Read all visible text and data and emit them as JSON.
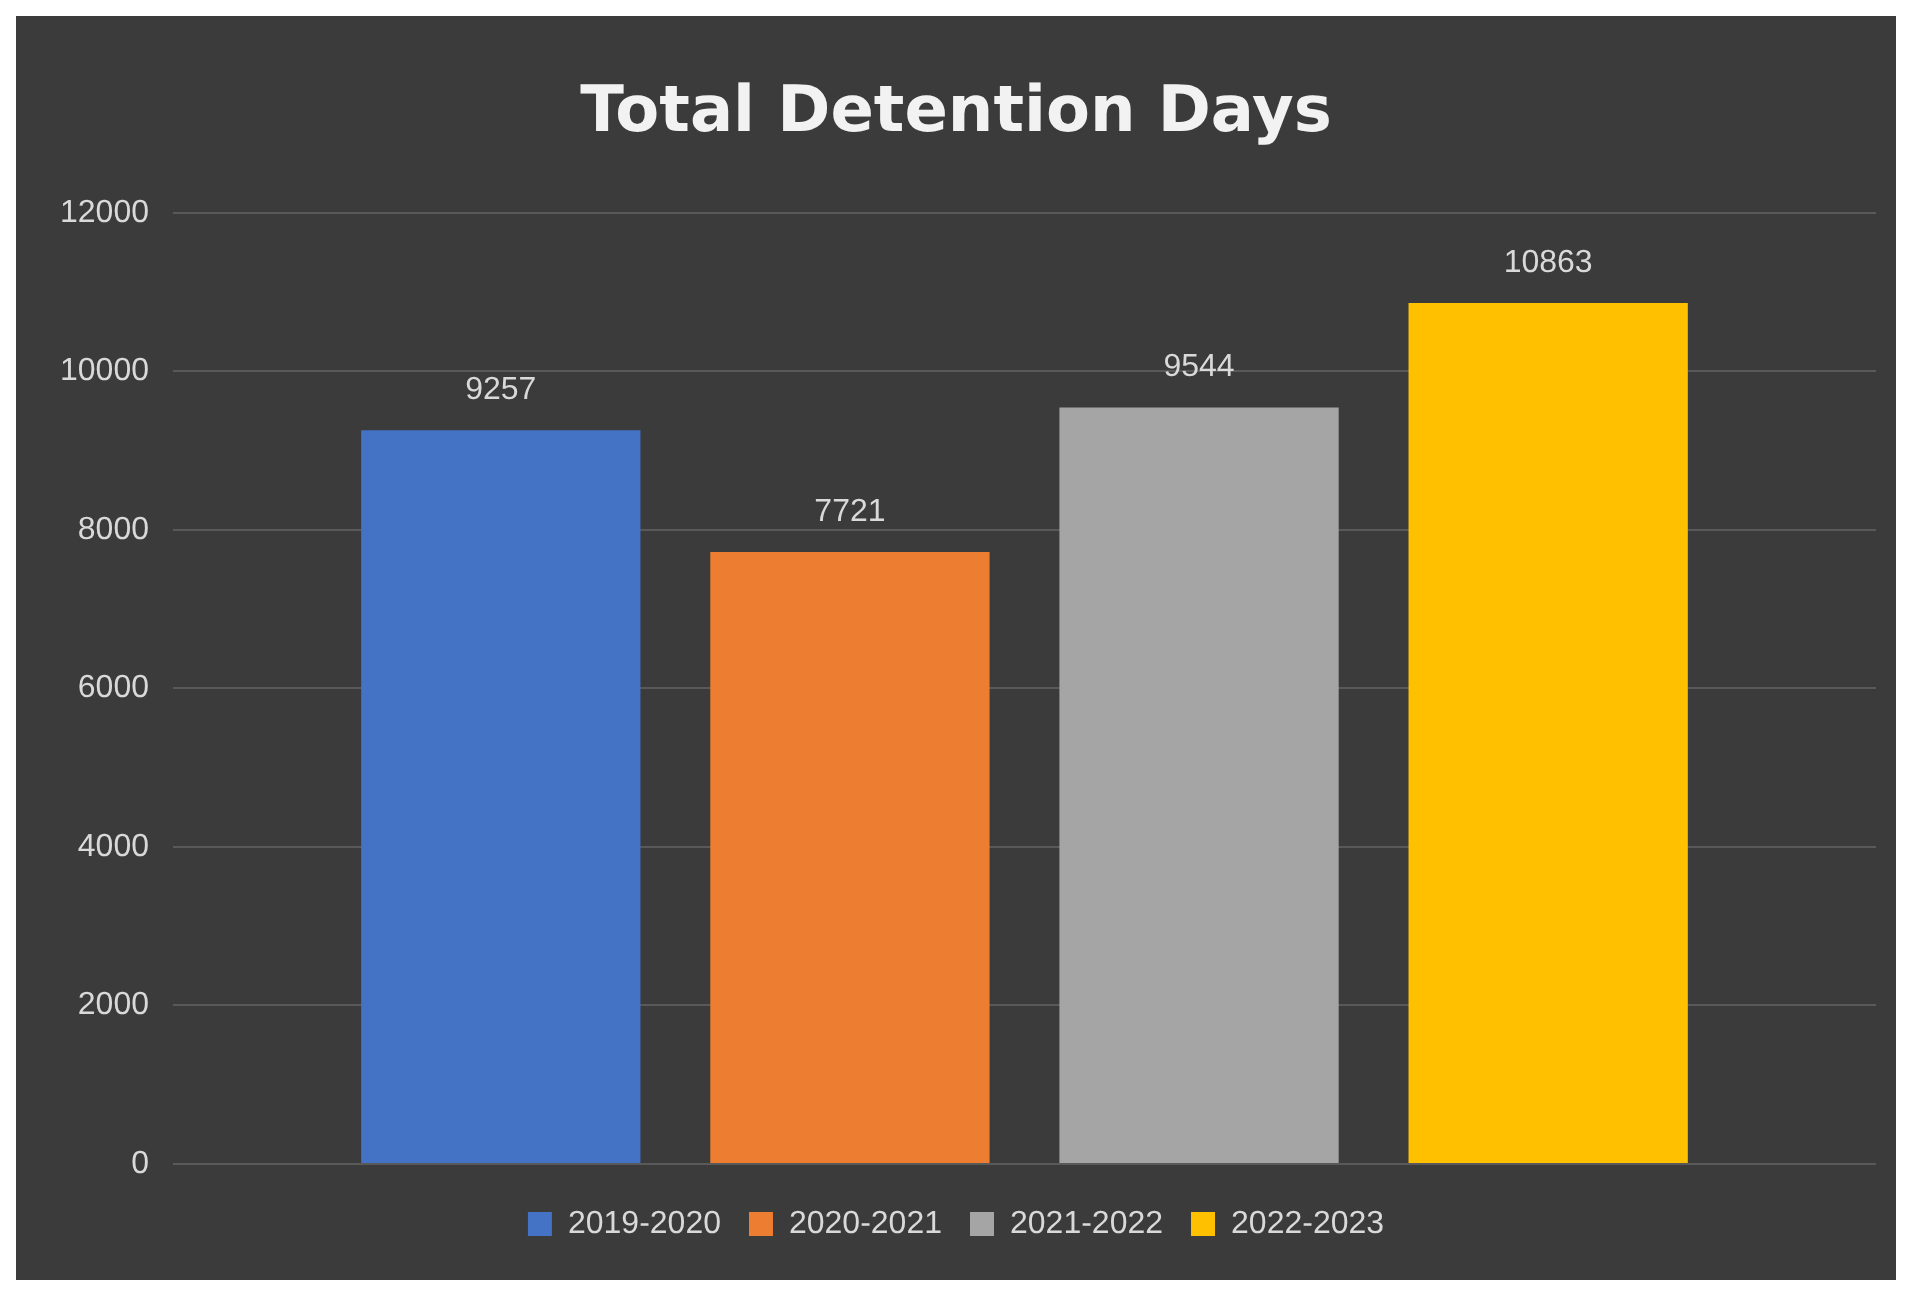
{
  "chart_data": {
    "type": "bar",
    "title": "Total Detention Days",
    "categories": [
      null
    ],
    "series": [
      {
        "name": "2019-2020",
        "color": "#4472c4",
        "values": [
          9257
        ]
      },
      {
        "name": "2020-2021",
        "color": "#ed7d31",
        "values": [
          7721
        ]
      },
      {
        "name": "2021-2022",
        "color": "#a5a5a5",
        "values": [
          9544
        ]
      },
      {
        "name": "2022-2023",
        "color": "#ffc000",
        "values": [
          10863
        ]
      }
    ],
    "ylim": [
      0,
      12000
    ],
    "yticks": [
      0,
      2000,
      4000,
      6000,
      8000,
      10000,
      12000
    ],
    "grid": "y",
    "legend": "bottom",
    "data_labels": true
  }
}
